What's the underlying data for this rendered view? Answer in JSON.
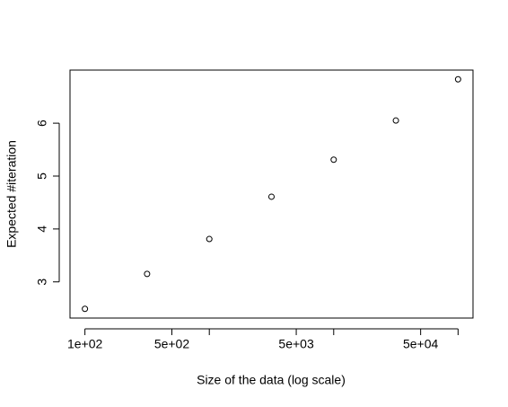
{
  "chart_data": {
    "type": "scatter",
    "xlabel": "Size of the data (log scale)",
    "ylabel": "Expected #iteration",
    "x": [
      100,
      316,
      1000,
      3162,
      10000,
      31623,
      100000
    ],
    "values": [
      2.49,
      3.15,
      3.81,
      4.61,
      5.31,
      6.05,
      6.83
    ],
    "xlog": true,
    "xlim": [
      75.86,
      131826
    ],
    "ylim": [
      2.316,
      7.004
    ],
    "xticks": [
      {
        "value": 100,
        "label": "1e+02"
      },
      {
        "value": 500,
        "label": "5e+02"
      },
      {
        "value": 5000,
        "label": "5e+03"
      },
      {
        "value": 50000,
        "label": "5e+04"
      }
    ],
    "xminor_ticks": [
      1000,
      10000,
      100000
    ],
    "yticks": [
      3,
      4,
      5,
      6
    ],
    "color": "#000000"
  }
}
